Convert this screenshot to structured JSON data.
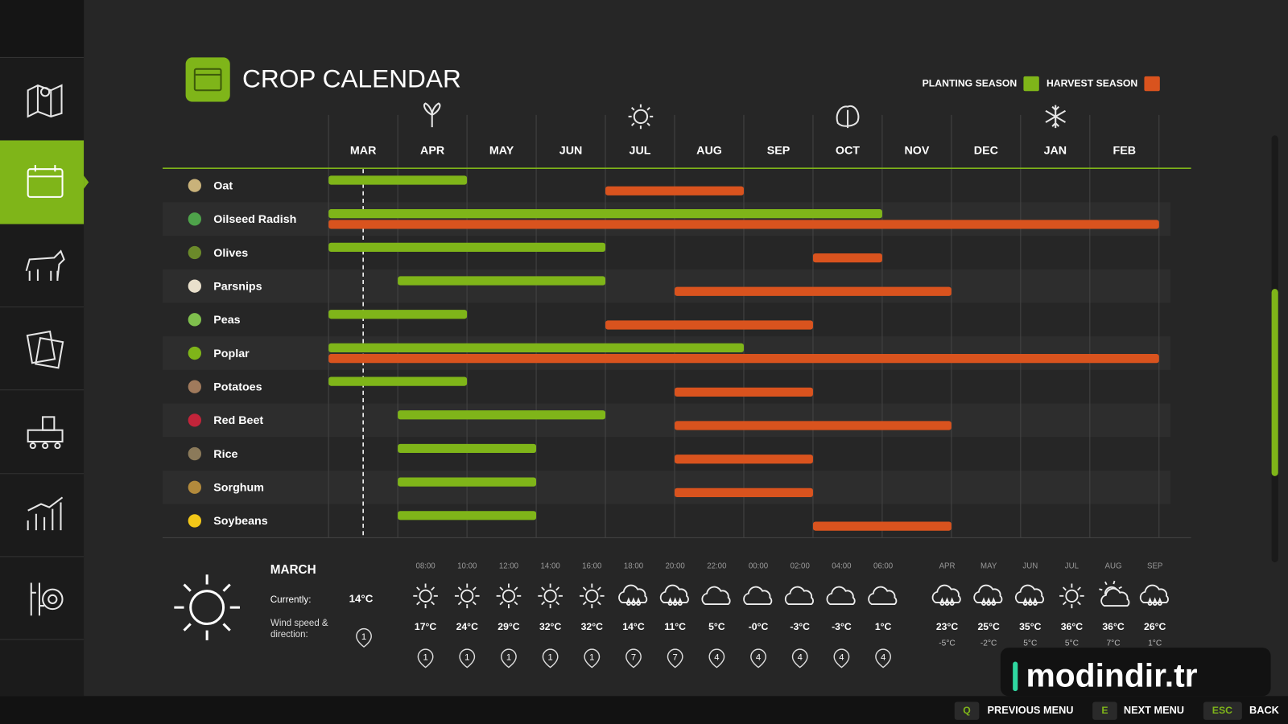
{
  "header": {
    "title": "CROP CALENDAR"
  },
  "legend": {
    "planting": {
      "label": "PLANTING SEASON",
      "color": "#7fb519"
    },
    "harvest": {
      "label": "HARVEST SEASON",
      "color": "#d9531e"
    }
  },
  "months": [
    "MAR",
    "APR",
    "MAY",
    "JUN",
    "JUL",
    "AUG",
    "SEP",
    "OCT",
    "NOV",
    "DEC",
    "JAN",
    "FEB"
  ],
  "current_month_position": 0.5,
  "crops": [
    {
      "name": "Oat",
      "planting": [
        0,
        2
      ],
      "harvest": [
        4,
        6
      ]
    },
    {
      "name": "Oilseed Radish",
      "planting": [
        0,
        8
      ],
      "harvest": [
        0,
        12
      ]
    },
    {
      "name": "Olives",
      "planting": [
        0,
        4
      ],
      "harvest": [
        7,
        8
      ]
    },
    {
      "name": "Parsnips",
      "planting": [
        1,
        4
      ],
      "harvest": [
        5,
        9
      ]
    },
    {
      "name": "Peas",
      "planting": [
        0,
        2
      ],
      "harvest": [
        4,
        7
      ]
    },
    {
      "name": "Poplar",
      "planting": [
        0,
        6
      ],
      "harvest": [
        0,
        12
      ]
    },
    {
      "name": "Potatoes",
      "planting": [
        0,
        2
      ],
      "harvest": [
        5,
        7
      ]
    },
    {
      "name": "Red Beet",
      "planting": [
        1,
        4
      ],
      "harvest": [
        5,
        9
      ]
    },
    {
      "name": "Rice",
      "planting": [
        1,
        3
      ],
      "harvest": [
        5,
        7
      ]
    },
    {
      "name": "Sorghum",
      "planting": [
        1,
        3
      ],
      "harvest": [
        5,
        7
      ]
    },
    {
      "name": "Soybeans",
      "planting": [
        1,
        3
      ],
      "harvest": [
        7,
        9
      ]
    }
  ],
  "weather": {
    "month": "MARCH",
    "currently_label": "Currently:",
    "currently_value": "14°C",
    "wind_label": "Wind speed & direction:",
    "wind_value": "1",
    "hourly": [
      {
        "time": "08:00",
        "icon": "sun",
        "temp": "17°C",
        "wind": "1"
      },
      {
        "time": "10:00",
        "icon": "sun",
        "temp": "24°C",
        "wind": "1"
      },
      {
        "time": "12:00",
        "icon": "sun",
        "temp": "29°C",
        "wind": "1"
      },
      {
        "time": "14:00",
        "icon": "sun",
        "temp": "32°C",
        "wind": "1"
      },
      {
        "time": "16:00",
        "icon": "sun",
        "temp": "32°C",
        "wind": "1"
      },
      {
        "time": "18:00",
        "icon": "rain",
        "temp": "14°C",
        "wind": "7"
      },
      {
        "time": "20:00",
        "icon": "rain",
        "temp": "11°C",
        "wind": "7"
      },
      {
        "time": "22:00",
        "icon": "cloud",
        "temp": "5°C",
        "wind": "4"
      },
      {
        "time": "00:00",
        "icon": "cloud",
        "temp": "-0°C",
        "wind": "4"
      },
      {
        "time": "02:00",
        "icon": "cloud",
        "temp": "-3°C",
        "wind": "4"
      },
      {
        "time": "04:00",
        "icon": "cloud",
        "temp": "-3°C",
        "wind": "4"
      },
      {
        "time": "06:00",
        "icon": "cloud",
        "temp": "1°C",
        "wind": "4"
      }
    ],
    "forecast": [
      {
        "month": "APR",
        "icon": "rain",
        "high": "23°C",
        "low": "-5°C"
      },
      {
        "month": "MAY",
        "icon": "rain",
        "high": "25°C",
        "low": "-2°C"
      },
      {
        "month": "JUN",
        "icon": "rain",
        "high": "35°C",
        "low": "5°C"
      },
      {
        "month": "JUL",
        "icon": "sun",
        "high": "36°C",
        "low": "5°C"
      },
      {
        "month": "AUG",
        "icon": "partly",
        "high": "36°C",
        "low": "7°C"
      },
      {
        "month": "SEP",
        "icon": "rain",
        "high": "26°C",
        "low": "1°C"
      }
    ]
  },
  "footer": {
    "prev_key": "Q",
    "prev_label": "PREVIOUS MENU",
    "next_key": "E",
    "next_label": "NEXT MENU",
    "back_key": "ESC",
    "back_label": "BACK"
  },
  "watermark": "modindir.tr"
}
